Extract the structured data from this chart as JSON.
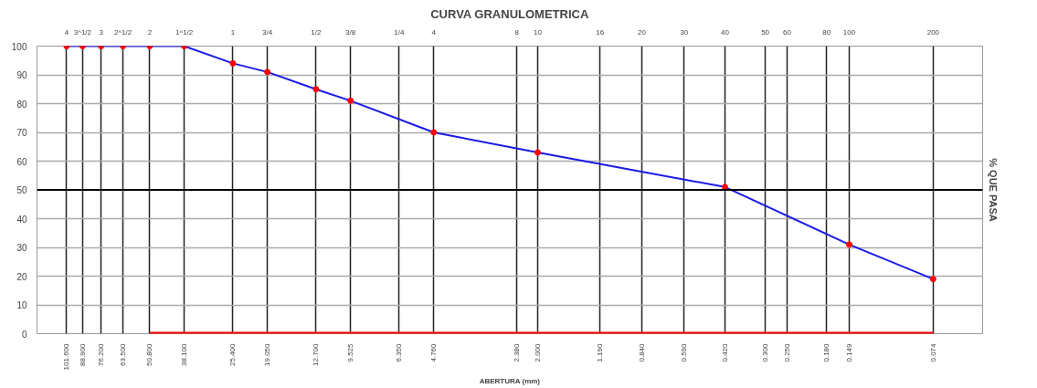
{
  "chart_data": {
    "type": "line",
    "title": "CURVA GRANULOMETRICA",
    "xlabel": "ABERTURA (mm)",
    "ylabel": "% QUE PASA",
    "log": "x",
    "grid": true,
    "marker": "circle",
    "line_style": "solid",
    "xlim": [
      130,
      0.049
    ],
    "ylim": [
      0,
      100
    ],
    "yticks": [
      0,
      10,
      20,
      30,
      40,
      50,
      60,
      70,
      80,
      90,
      100
    ],
    "xticks": [
      {
        "value": 101.6,
        "label": "101.600"
      },
      {
        "value": 88.9,
        "label": "88.900"
      },
      {
        "value": 76.2,
        "label": "76.200"
      },
      {
        "value": 63.5,
        "label": "63.500"
      },
      {
        "value": 50.8,
        "label": "50.800"
      },
      {
        "value": 38.1,
        "label": "38.100"
      },
      {
        "value": 25.4,
        "label": "25.400"
      },
      {
        "value": 19.05,
        "label": "19.050"
      },
      {
        "value": 12.7,
        "label": "12.700"
      },
      {
        "value": 9.525,
        "label": "9.525"
      },
      {
        "value": 6.35,
        "label": "6.350"
      },
      {
        "value": 4.76,
        "label": "4.760"
      },
      {
        "value": 2.38,
        "label": "2.380"
      },
      {
        "value": 2.0,
        "label": "2.000"
      },
      {
        "value": 1.19,
        "label": "1.190"
      },
      {
        "value": 0.84,
        "label": "0.840"
      },
      {
        "value": 0.59,
        "label": "0.590"
      },
      {
        "value": 0.42,
        "label": "0.420"
      },
      {
        "value": 0.3,
        "label": "0.300"
      },
      {
        "value": 0.25,
        "label": "0.250"
      },
      {
        "value": 0.18,
        "label": "0.180"
      },
      {
        "value": 0.149,
        "label": "0.149"
      },
      {
        "value": 0.074,
        "label": "0.074"
      }
    ],
    "annotations": [
      "4",
      "3^1/2",
      "3",
      "2^1/2",
      "2",
      "1^1/2",
      "1",
      "3/4",
      "1/2",
      "3/8",
      "1/4",
      "4",
      "8",
      "10",
      "16",
      "20",
      "30",
      "40",
      "50",
      "60",
      "80",
      "100",
      "200"
    ],
    "ref_lines": [
      {
        "axis": "y",
        "value": 50,
        "color": "#000000"
      }
    ],
    "series": [
      {
        "color": "#1a1ae6",
        "colors": [
          "#ff0000",
          "#ff0000",
          "#ff0000",
          "#ff0000",
          "#ff0000",
          "#ff0000",
          "#ff0000",
          "#ff0000",
          "#ff0000",
          "#ff0000",
          "#ff0000",
          "#ff0000",
          "#ff0000",
          "#ff0000",
          "#ff0000"
        ],
        "x": [
          101.6,
          88.9,
          76.2,
          63.5,
          50.8,
          38.1,
          25.4,
          19.05,
          12.7,
          9.525,
          4.76,
          2.0,
          0.42,
          0.149,
          0.074
        ],
        "values": [
          100,
          100,
          100,
          100,
          100,
          100,
          94,
          91,
          85,
          81,
          70,
          63,
          51,
          31,
          19
        ]
      },
      {
        "color": "#ff0000",
        "marker": "none",
        "x": [
          50.8,
          0.074
        ],
        "values": [
          0,
          0
        ]
      }
    ]
  }
}
